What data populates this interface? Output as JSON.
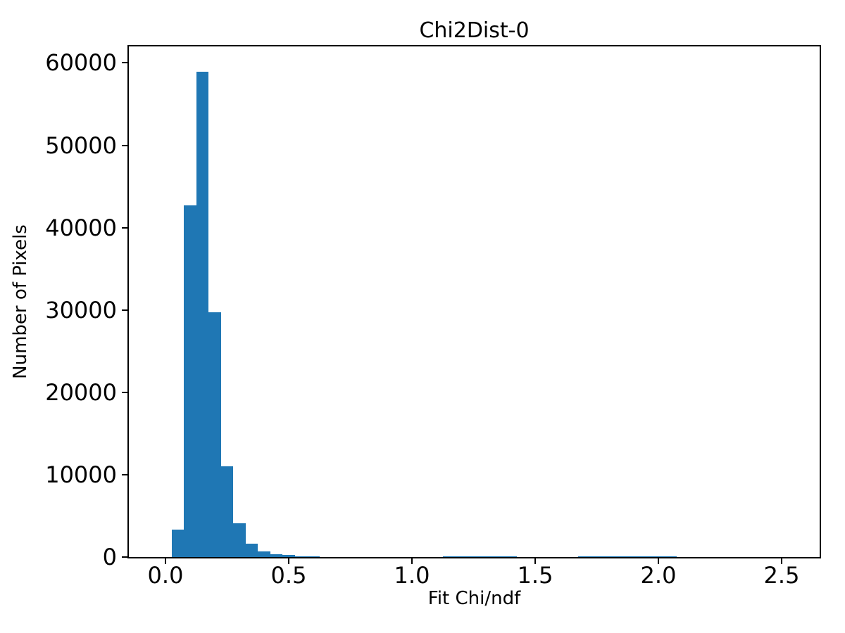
{
  "chart_data": {
    "type": "bar",
    "subtype": "histogram",
    "title": "Chi2Dist-0",
    "xlabel": "Fit Chi/ndf",
    "ylabel": "Number of Pixels",
    "bar_color": "#1f77b4",
    "axis_color": "#000000",
    "background_color": "#ffffff",
    "grid": false,
    "legend": false,
    "xlim": [
      -0.14857,
      2.65429
    ],
    "ylim": [
      0,
      62000
    ],
    "xticks": [
      0.0,
      0.5,
      1.0,
      1.5,
      2.0,
      2.5
    ],
    "xtick_labels": [
      "0.0",
      "0.5",
      "1.0",
      "1.5",
      "2.0",
      "2.5"
    ],
    "yticks": [
      0,
      10000,
      20000,
      30000,
      40000,
      50000,
      60000
    ],
    "ytick_labels": [
      "0",
      "10000",
      "20000",
      "30000",
      "40000",
      "50000",
      "60000"
    ],
    "bin_width": 0.05,
    "bins": [
      {
        "x": 0.025,
        "count": 3300
      },
      {
        "x": 0.075,
        "count": 42700
      },
      {
        "x": 0.125,
        "count": 58900
      },
      {
        "x": 0.175,
        "count": 29700
      },
      {
        "x": 0.225,
        "count": 11000
      },
      {
        "x": 0.275,
        "count": 4100
      },
      {
        "x": 0.325,
        "count": 1600
      },
      {
        "x": 0.375,
        "count": 660
      },
      {
        "x": 0.425,
        "count": 340
      },
      {
        "x": 0.475,
        "count": 230
      },
      {
        "x": 0.525,
        "count": 110
      },
      {
        "x": 0.575,
        "count": 110
      },
      {
        "x": 1.125,
        "count": 120
      },
      {
        "x": 1.175,
        "count": 120
      },
      {
        "x": 1.225,
        "count": 120
      },
      {
        "x": 1.275,
        "count": 120
      },
      {
        "x": 1.325,
        "count": 120
      },
      {
        "x": 1.375,
        "count": 120
      },
      {
        "x": 1.675,
        "count": 120
      },
      {
        "x": 1.725,
        "count": 120
      },
      {
        "x": 1.775,
        "count": 120
      },
      {
        "x": 1.825,
        "count": 120
      },
      {
        "x": 1.875,
        "count": 120
      },
      {
        "x": 1.925,
        "count": 120
      },
      {
        "x": 1.975,
        "count": 120
      },
      {
        "x": 2.025,
        "count": 120
      }
    ]
  }
}
